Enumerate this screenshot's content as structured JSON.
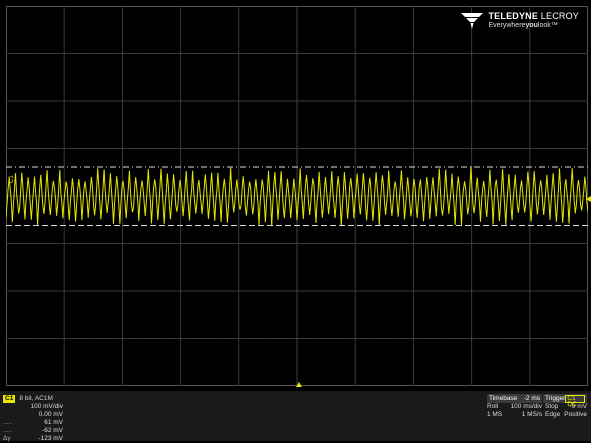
{
  "brand": {
    "name_bold": "TELEDYNE",
    "name_light": "LECROY",
    "tagline_pre": "Everywhere",
    "tagline_bold": "you",
    "tagline_post": "look",
    "tagline_mark": "™"
  },
  "waveform": {
    "channel_label": "C1",
    "color": "#e6e600",
    "cursor_top_mv": 61,
    "cursor_bottom_mv": -62,
    "volts_per_div_mv": 100,
    "divisions_vertical": 8,
    "divisions_horizontal": 10
  },
  "channel": {
    "badge": "C1",
    "coupling": "8 bit, AC1M",
    "scale": "100 mV/div",
    "offset": "0.00 mV",
    "cursor1_label": ".....",
    "cursor1": "61 mV",
    "cursor2_label": ".....",
    "cursor2": "-62 mV",
    "delta_label": "Δy",
    "delta": "-123 mV"
  },
  "timebase": {
    "title": "Timebase",
    "delay": "-2 ms",
    "mode": "Roll",
    "scale": "100 ms/div",
    "samples": "1 MS",
    "rate": "1 MS/s"
  },
  "trigger": {
    "title": "Trigger",
    "source": "C1 DC",
    "state": "Stop",
    "level": "-9 mV",
    "type": "Edge",
    "slope": "Positive"
  }
}
